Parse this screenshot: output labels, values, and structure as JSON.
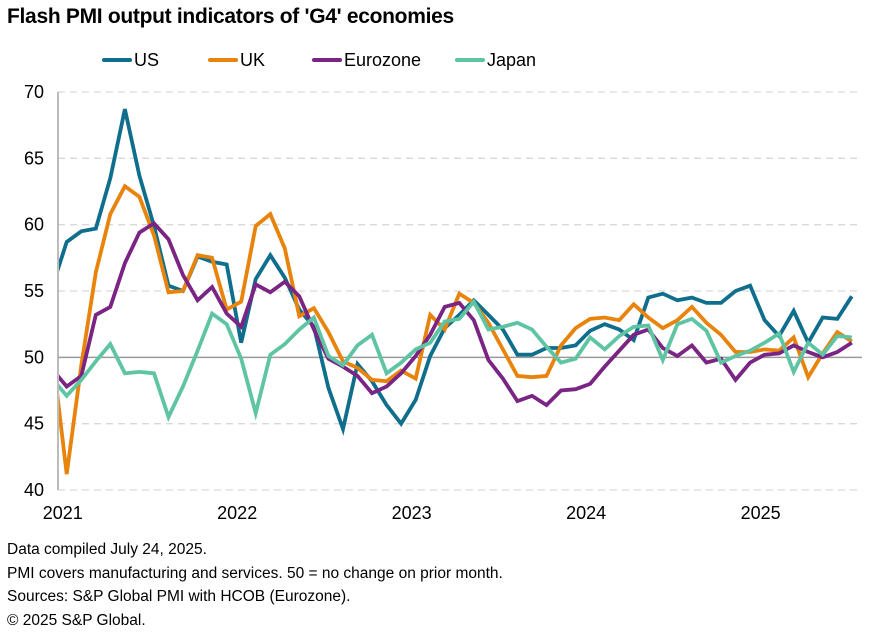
{
  "title": "Flash PMI output indicators of 'G4' economies",
  "legend": [
    {
      "name": "US",
      "color": "#0f6e8c"
    },
    {
      "name": "UK",
      "color": "#e8830c"
    },
    {
      "name": "Eurozone",
      "color": "#7a2484"
    },
    {
      "name": "Japan",
      "color": "#5ec4a4"
    }
  ],
  "notes": [
    "Data compiled July 24, 2025.",
    "PMI covers manufacturing and services. 50 = no change on prior month.",
    "Sources: S&P Global PMI with HCOB (Eurozone).",
    "© 2025 S&P Global."
  ],
  "chart_data": {
    "type": "line",
    "title": "Flash PMI output indicators of 'G4' economies",
    "xlabel": "",
    "ylabel": "",
    "x_start": "2020-12",
    "x_end": "2025-07",
    "x_frequency": "monthly",
    "x_ticks": [
      "2021",
      "2022",
      "2023",
      "2024",
      "2025"
    ],
    "x_range_months_from_jan2021": [
      -0.6,
      54.7
    ],
    "ylim": [
      40,
      70
    ],
    "y_ticks": [
      40,
      45,
      50,
      55,
      60,
      65,
      70
    ],
    "reference_line": 50,
    "grid": "horizontal dashed",
    "legend_position": "top",
    "series": [
      {
        "name": "US",
        "color": "#0f6e8c",
        "values": [
          55.3,
          58.7,
          59.5,
          59.7,
          63.5,
          68.7,
          63.7,
          59.9,
          55.4,
          55.0,
          57.6,
          57.2,
          57.0,
          51.1,
          55.9,
          57.7,
          56.0,
          53.6,
          52.3,
          47.7,
          44.6,
          49.5,
          48.2,
          46.4,
          45.0,
          46.8,
          50.1,
          52.2,
          53.2,
          54.3,
          53.2,
          52.1,
          50.2,
          50.2,
          50.7,
          50.7,
          50.9,
          52.0,
          52.5,
          52.1,
          51.3,
          54.5,
          54.8,
          54.3,
          54.5,
          54.1,
          54.1,
          55.0,
          55.4,
          52.8,
          51.6,
          53.5,
          51.1,
          53.0,
          52.9,
          54.6
        ]
      },
      {
        "name": "UK",
        "color": "#e8830c",
        "values": [
          50.4,
          41.2,
          49.4,
          56.4,
          60.8,
          62.9,
          62.1,
          59.2,
          54.9,
          55.0,
          57.7,
          57.5,
          53.6,
          54.2,
          59.9,
          60.8,
          58.2,
          53.1,
          53.7,
          51.9,
          49.7,
          49.2,
          48.3,
          48.2,
          49.0,
          48.4,
          53.2,
          52.1,
          54.8,
          54.1,
          52.6,
          50.6,
          48.6,
          48.5,
          48.6,
          50.9,
          52.2,
          52.9,
          53.0,
          52.8,
          54.0,
          53.0,
          52.2,
          52.8,
          53.8,
          52.6,
          51.7,
          50.4,
          50.4,
          50.6,
          50.5,
          51.5,
          48.5,
          50.3,
          51.9,
          51.2
        ]
      },
      {
        "name": "Eurozone",
        "color": "#7a2484",
        "values": [
          49.1,
          47.8,
          48.6,
          53.2,
          53.8,
          57.1,
          59.4,
          60.1,
          58.9,
          56.2,
          54.3,
          55.3,
          53.3,
          52.3,
          55.5,
          54.9,
          55.7,
          54.6,
          52.1,
          49.9,
          49.3,
          48.6,
          47.3,
          47.8,
          48.8,
          50.1,
          51.7,
          53.8,
          54.1,
          52.8,
          49.8,
          48.4,
          46.7,
          47.1,
          46.4,
          47.5,
          47.6,
          48.0,
          49.3,
          50.5,
          51.7,
          52.1,
          50.7,
          50.1,
          50.9,
          49.6,
          49.9,
          48.3,
          49.6,
          50.2,
          50.3,
          50.9,
          50.4,
          50.0,
          50.4,
          51.1
        ]
      },
      {
        "name": "Japan",
        "color": "#5ec4a4",
        "values": [
          48.4,
          47.1,
          48.3,
          49.7,
          51.0,
          48.8,
          48.9,
          48.8,
          45.5,
          47.8,
          50.5,
          53.3,
          52.5,
          49.9,
          45.8,
          50.2,
          51.0,
          52.1,
          53.0,
          50.1,
          49.4,
          50.9,
          51.7,
          48.8,
          49.6,
          50.6,
          51.1,
          52.7,
          52.9,
          54.2,
          52.1,
          52.3,
          52.6,
          52.1,
          50.8,
          49.6,
          49.9,
          51.5,
          50.6,
          51.6,
          52.3,
          52.4,
          49.8,
          52.5,
          52.9,
          52.0,
          49.6,
          50.1,
          50.5,
          51.1,
          51.8,
          48.9,
          51.1,
          50.2,
          51.6,
          51.5
        ]
      }
    ]
  }
}
